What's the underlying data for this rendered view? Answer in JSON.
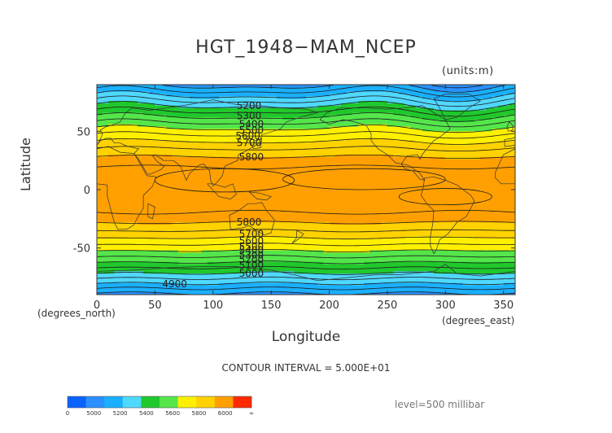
{
  "colors": {
    "levels": [
      "#0a62ff",
      "#2a90ff",
      "#1ab0ff",
      "#50d8ff",
      "#20c82c",
      "#54e64a",
      "#fff000",
      "#ffd200",
      "#ffa000",
      "#ff2a00"
    ],
    "contour_line": "#1a1a1a",
    "coast_line": "#333333"
  },
  "colorbar": {
    "tick_labels": [
      "0",
      "5000",
      "5200",
      "5400",
      "5600",
      "5800",
      "6000",
      "∞"
    ]
  },
  "chart_data": {
    "type": "heatmap",
    "title": "HGT_1948−MAM_NCEP",
    "units": "(units:m)",
    "xlabel": "Longitude",
    "ylabel": "Latitude",
    "x_unit": "(degrees_east)",
    "y_unit": "(degrees_north)",
    "xlim": [
      0,
      360
    ],
    "ylim": [
      -90,
      90
    ],
    "xticks": [
      0,
      50,
      100,
      150,
      200,
      250,
      300,
      350
    ],
    "yticks": [
      -50,
      0,
      50
    ],
    "contour_interval_text": "CONTOUR INTERVAL = 5.000E+01",
    "level_text": "level=500 millibar",
    "color_bounds": [
      0,
      4900,
      5000,
      5100,
      5200,
      5300,
      5400,
      5500,
      5600,
      5700,
      5800,
      5900,
      6000
    ],
    "color_level_map": [
      0,
      0,
      0,
      1,
      2,
      3,
      4,
      5,
      6,
      7,
      8,
      8,
      9
    ],
    "contour_labels": [
      {
        "text": "5200",
        "lon": 131,
        "lat": 72
      },
      {
        "text": "5300",
        "lon": 131,
        "lat": 63
      },
      {
        "text": "5400",
        "lon": 133,
        "lat": 56
      },
      {
        "text": "5500",
        "lon": 133,
        "lat": 51
      },
      {
        "text": "5600",
        "lon": 130,
        "lat": 46
      },
      {
        "text": "5700",
        "lon": 131,
        "lat": 40
      },
      {
        "text": "5800",
        "lon": 133,
        "lat": 28
      },
      {
        "text": "5800",
        "lon": 131,
        "lat": -28
      },
      {
        "text": "5700",
        "lon": 133,
        "lat": -38
      },
      {
        "text": "5600",
        "lon": 133,
        "lat": -44
      },
      {
        "text": "5500",
        "lon": 133,
        "lat": -49
      },
      {
        "text": "5400",
        "lon": 133,
        "lat": -52
      },
      {
        "text": "5300",
        "lon": 133,
        "lat": -56
      },
      {
        "text": "5200",
        "lon": 133,
        "lat": -60
      },
      {
        "text": "5100",
        "lon": 133,
        "lat": -65
      },
      {
        "text": "5000",
        "lon": 133,
        "lat": -72
      },
      {
        "text": "4900",
        "lon": 67,
        "lat": -81
      }
    ]
  }
}
